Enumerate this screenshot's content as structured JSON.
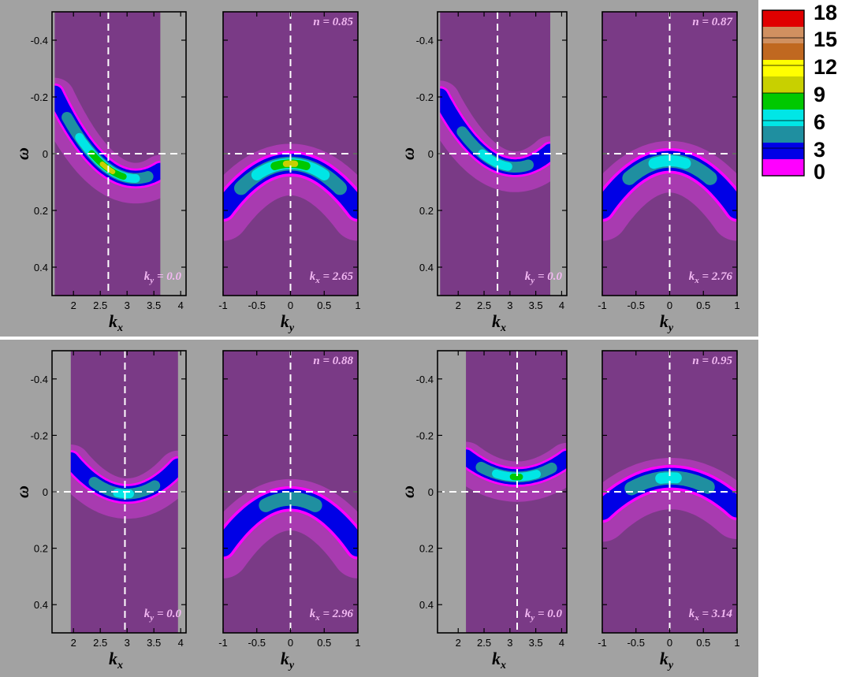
{
  "colors": {
    "figure_bg": "#a2a2a2",
    "panel_bg": "#7a3a86",
    "colormap": [
      "#ff00ff",
      "#0000e6",
      "#1f8fa0",
      "#00e6e6",
      "#00c800",
      "#c8d000",
      "#ffff00",
      "#c06820",
      "#d09060",
      "#e00000"
    ]
  },
  "colorbar": {
    "ticks": [
      "18",
      "15",
      "12",
      "9",
      "6",
      "3",
      "0"
    ],
    "range": [
      0,
      18
    ]
  },
  "chart_data": [
    {
      "type": "heatmap",
      "id": "p1",
      "xlabel": "k",
      "xlabel_sub": "x",
      "ylabel": "ω",
      "xlim": [
        1.6,
        4.1
      ],
      "xdata": [
        1.65,
        3.62
      ],
      "ylim": [
        -0.5,
        0.5
      ],
      "y_inverted": true,
      "xticks": [
        {
          "v": 2,
          "t": "2"
        },
        {
          "v": 2.5,
          "t": "2.5"
        },
        {
          "v": 3,
          "t": "3"
        },
        {
          "v": 3.5,
          "t": "3.5"
        },
        {
          "v": 4,
          "t": "4"
        }
      ],
      "yticks": [
        {
          "v": -0.4,
          "t": "-0.4"
        },
        {
          "v": -0.2,
          "t": "-0.2"
        },
        {
          "v": 0,
          "t": "0"
        },
        {
          "v": 0.2,
          "t": "0.2"
        },
        {
          "v": 0.4,
          "t": "0.4"
        }
      ],
      "vline": 2.65,
      "hline": 0,
      "annot_sym": "k",
      "annot_sub": "y",
      "annot_val": "= 0.0",
      "band": {
        "center": 3.16,
        "bottom": 0.06,
        "top": -0.24,
        "peak": 13
      }
    },
    {
      "type": "heatmap",
      "id": "p2",
      "xlabel": "k",
      "xlabel_sub": "y",
      "xlim": [
        -1,
        1
      ],
      "xdata": [
        -1,
        1
      ],
      "ylim": [
        -0.5,
        0.5
      ],
      "y_inverted": true,
      "xticks": [
        {
          "v": -1,
          "t": "-1"
        },
        {
          "v": -0.5,
          "t": "-0.5"
        },
        {
          "v": 0,
          "t": "0"
        },
        {
          "v": 0.5,
          "t": "0.5"
        },
        {
          "v": 1,
          "t": "1"
        }
      ],
      "yticks": [],
      "vline": 0,
      "hline": 0,
      "top_annot": "n = 0.85",
      "annot_sym": "k",
      "annot_sub": "x",
      "annot_val": "= 2.65",
      "band": {
        "center": 0,
        "bottom": 0.0,
        "top": 0.16,
        "peak": 12
      }
    },
    {
      "type": "heatmap",
      "id": "p3",
      "xlabel": "k",
      "xlabel_sub": "x",
      "ylabel": "ω",
      "xlim": [
        1.6,
        4.1
      ],
      "xdata": [
        1.65,
        3.78
      ],
      "ylim": [
        -0.5,
        0.5
      ],
      "y_inverted": true,
      "xticks": [
        {
          "v": 2,
          "t": "2"
        },
        {
          "v": 2.5,
          "t": "2.5"
        },
        {
          "v": 3,
          "t": "3"
        },
        {
          "v": 3.5,
          "t": "3.5"
        },
        {
          "v": 4,
          "t": "4"
        }
      ],
      "yticks": [
        {
          "v": -0.4,
          "t": "-0.4"
        },
        {
          "v": -0.2,
          "t": "-0.2"
        },
        {
          "v": 0,
          "t": "0"
        },
        {
          "v": 0.2,
          "t": "0.2"
        },
        {
          "v": 0.4,
          "t": "0.4"
        }
      ],
      "vline": 2.76,
      "hline": 0,
      "annot_sym": "k",
      "annot_sub": "y",
      "annot_val": "= 0.0",
      "band": {
        "center": 3.1,
        "bottom": 0.02,
        "top": -0.23,
        "peak": 8
      }
    },
    {
      "type": "heatmap",
      "id": "p4",
      "xlabel": "k",
      "xlabel_sub": "y",
      "xlim": [
        -1,
        1
      ],
      "xdata": [
        -1,
        1
      ],
      "ylim": [
        -0.5,
        0.5
      ],
      "y_inverted": true,
      "xticks": [
        {
          "v": -1,
          "t": "-1"
        },
        {
          "v": -0.5,
          "t": "-0.5"
        },
        {
          "v": 0,
          "t": "0"
        },
        {
          "v": 0.5,
          "t": "0.5"
        },
        {
          "v": 1,
          "t": "1"
        }
      ],
      "yticks": [],
      "vline": 0,
      "hline": 0,
      "top_annot": "n = 0.87",
      "annot_sym": "k",
      "annot_sub": "x",
      "annot_val": "= 2.76",
      "band": {
        "center": 0,
        "bottom": -0.01,
        "top": 0.16,
        "peak": 8
      }
    },
    {
      "type": "heatmap",
      "id": "p5",
      "xlabel": "k",
      "xlabel_sub": "x",
      "ylabel": "ω",
      "xlim": [
        1.6,
        4.1
      ],
      "xdata": [
        1.95,
        3.95
      ],
      "ylim": [
        -0.5,
        0.5
      ],
      "y_inverted": true,
      "xticks": [
        {
          "v": 2,
          "t": "2"
        },
        {
          "v": 2.5,
          "t": "2.5"
        },
        {
          "v": 3,
          "t": "3"
        },
        {
          "v": 3.5,
          "t": "3.5"
        },
        {
          "v": 4,
          "t": "4"
        }
      ],
      "yticks": [
        {
          "v": -0.4,
          "t": "-0.4"
        },
        {
          "v": -0.2,
          "t": "-0.2"
        },
        {
          "v": 0,
          "t": "0"
        },
        {
          "v": 0.2,
          "t": "0.2"
        },
        {
          "v": 0.4,
          "t": "0.4"
        }
      ],
      "vline": 2.96,
      "hline": 0,
      "annot_sym": "k",
      "annot_sub": "y",
      "annot_val": "= 0.0",
      "band": {
        "center": 3.0,
        "bottom": -0.02,
        "top": -0.14,
        "peak": 7
      }
    },
    {
      "type": "heatmap",
      "id": "p6",
      "xlabel": "k",
      "xlabel_sub": "y",
      "xlim": [
        -1,
        1
      ],
      "xdata": [
        -1,
        1
      ],
      "ylim": [
        -0.5,
        0.5
      ],
      "y_inverted": true,
      "xticks": [
        {
          "v": -1,
          "t": "-1"
        },
        {
          "v": -0.5,
          "t": "-0.5"
        },
        {
          "v": 0,
          "t": "0"
        },
        {
          "v": 0.5,
          "t": "0.5"
        },
        {
          "v": 1,
          "t": "1"
        }
      ],
      "yticks": [],
      "vline": 0,
      "hline": 0,
      "top_annot": "n = 0.88",
      "annot_sym": "k",
      "annot_sub": "x",
      "annot_val": "= 2.96",
      "band": {
        "center": 0,
        "bottom": -0.01,
        "top": 0.16,
        "peak": 5
      }
    },
    {
      "type": "heatmap",
      "id": "p7",
      "xlabel": "k",
      "xlabel_sub": "x",
      "ylabel": "ω",
      "xlim": [
        1.6,
        4.1
      ],
      "xdata": [
        2.15,
        4.1
      ],
      "ylim": [
        -0.5,
        0.5
      ],
      "y_inverted": true,
      "xticks": [
        {
          "v": 2,
          "t": "2"
        },
        {
          "v": 2.5,
          "t": "2.5"
        },
        {
          "v": 3,
          "t": "3"
        },
        {
          "v": 3.5,
          "t": "3.5"
        },
        {
          "v": 4,
          "t": "4"
        }
      ],
      "yticks": [
        {
          "v": -0.4,
          "t": "-0.4"
        },
        {
          "v": -0.2,
          "t": "-0.2"
        },
        {
          "v": 0,
          "t": "0"
        },
        {
          "v": 0.2,
          "t": "0.2"
        },
        {
          "v": 0.4,
          "t": "0.4"
        }
      ],
      "vline": 3.14,
      "hline": 0,
      "annot_sym": "k",
      "annot_sub": "y",
      "annot_val": "= 0.0",
      "band": {
        "center": 3.14,
        "bottom": -0.08,
        "top": -0.15,
        "peak": 10
      }
    },
    {
      "type": "heatmap",
      "id": "p8",
      "xlabel": "k",
      "xlabel_sub": "y",
      "xlim": [
        -1,
        1
      ],
      "xdata": [
        -1,
        1
      ],
      "ylim": [
        -0.5,
        0.5
      ],
      "y_inverted": true,
      "xticks": [
        {
          "v": -1,
          "t": "-1"
        },
        {
          "v": -0.5,
          "t": "-0.5"
        },
        {
          "v": 0,
          "t": "0"
        },
        {
          "v": 0.5,
          "t": "0.5"
        },
        {
          "v": 1,
          "t": "1"
        }
      ],
      "yticks": [],
      "vline": 0,
      "hline": 0,
      "top_annot": "n = 0.95",
      "annot_sym": "k",
      "annot_sub": "x",
      "annot_val": "= 3.14",
      "band": {
        "center": 0.02,
        "bottom": -0.085,
        "top": 0.03,
        "peak": 7
      }
    }
  ]
}
